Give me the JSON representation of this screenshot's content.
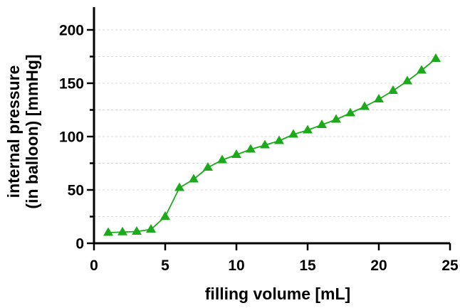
{
  "chart_data": {
    "type": "line",
    "xlabel": "filling volume [mL]",
    "ylabel_lines": [
      "internal pressure",
      "(in balloon) [mmHg]"
    ],
    "xlim": [
      0,
      25
    ],
    "ylim": [
      0,
      220
    ],
    "x_ticks": [
      0,
      5,
      10,
      15,
      20,
      25
    ],
    "y_ticks": [
      0,
      50,
      100,
      150,
      200
    ],
    "y_minor_ticks": [
      25,
      75,
      125,
      175
    ],
    "grid": true,
    "series": [
      {
        "color": "#1aaa1a",
        "marker": "triangle",
        "x": [
          1,
          2,
          3,
          4,
          5,
          6,
          7,
          8,
          9,
          10,
          11,
          12,
          13,
          14,
          15,
          16,
          17,
          18,
          19,
          20,
          21,
          22,
          23,
          24
        ],
        "y": [
          10,
          10.5,
          11,
          13,
          25,
          52,
          60,
          71,
          78,
          83,
          88,
          92,
          96,
          102,
          106,
          111,
          116,
          122,
          128,
          135,
          143,
          152,
          162,
          173
        ]
      }
    ]
  }
}
